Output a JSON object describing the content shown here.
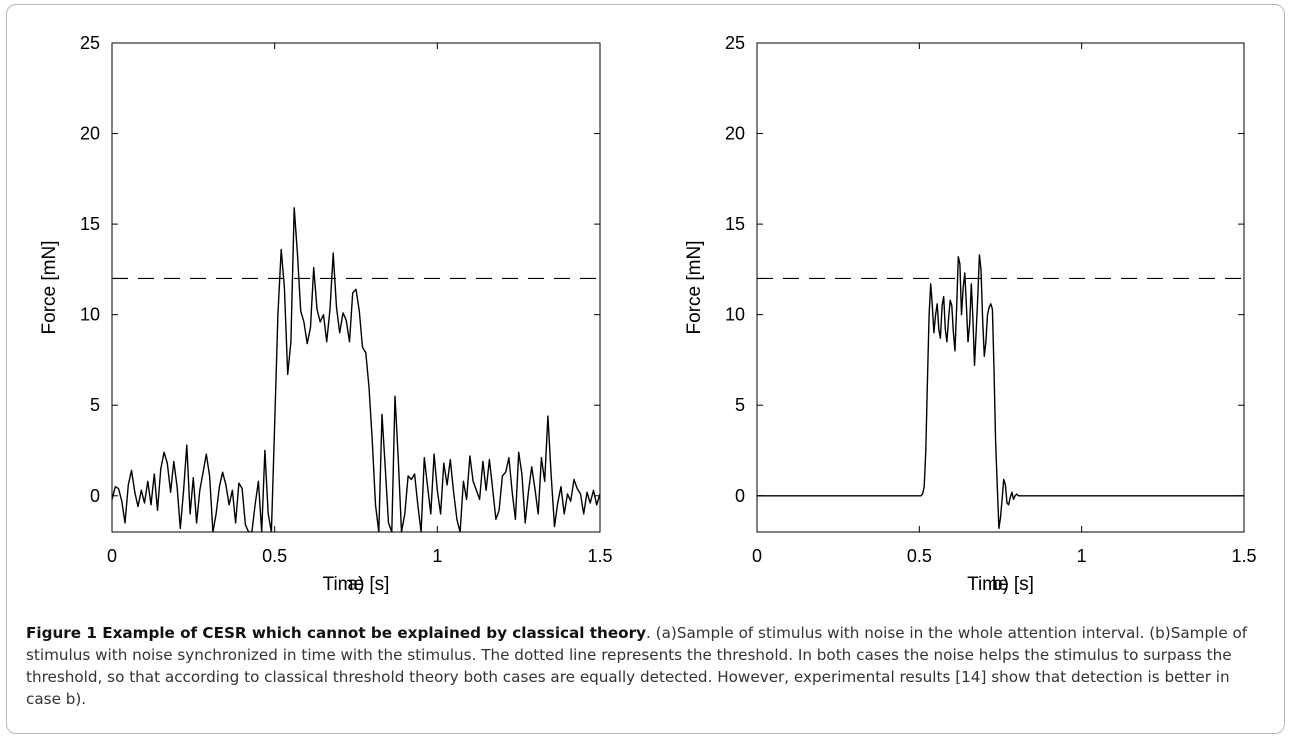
{
  "chart_data": [
    {
      "type": "line",
      "panel_label": "a)",
      "xlabel": "Time [s]",
      "ylabel": "Force [mN]",
      "xlim": [
        0,
        1.5
      ],
      "ylim": [
        -2,
        25
      ],
      "xticks": [
        "0",
        "0.5",
        "1",
        "1.5"
      ],
      "yticks": [
        "0",
        "5",
        "10",
        "15",
        "20",
        "25"
      ],
      "threshold": 12,
      "series": [
        {
          "style": "solid",
          "x": [
            0,
            0.01,
            0.02,
            0.03,
            0.04,
            0.05,
            0.06,
            0.07,
            0.08,
            0.09,
            0.1,
            0.11,
            0.12,
            0.13,
            0.14,
            0.15,
            0.16,
            0.17,
            0.18,
            0.19,
            0.2,
            0.21,
            0.22,
            0.23,
            0.24,
            0.25,
            0.26,
            0.27,
            0.28,
            0.29,
            0.3,
            0.31,
            0.32,
            0.33,
            0.34,
            0.35,
            0.36,
            0.37,
            0.38,
            0.39,
            0.4,
            0.41,
            0.42,
            0.43,
            0.44,
            0.45,
            0.46,
            0.47,
            0.48,
            0.49,
            0.5,
            0.51,
            0.52,
            0.53,
            0.54,
            0.55,
            0.56,
            0.57,
            0.58,
            0.59,
            0.6,
            0.61,
            0.62,
            0.63,
            0.64,
            0.65,
            0.66,
            0.67,
            0.68,
            0.69,
            0.7,
            0.71,
            0.72,
            0.73,
            0.74,
            0.75,
            0.76,
            0.77,
            0.78,
            0.79,
            0.8,
            0.81,
            0.82,
            0.83,
            0.84,
            0.85,
            0.86,
            0.87,
            0.88,
            0.89,
            0.9,
            0.91,
            0.92,
            0.93,
            0.94,
            0.95,
            0.96,
            0.97,
            0.98,
            0.99,
            1.0,
            1.01,
            1.02,
            1.03,
            1.04,
            1.05,
            1.06,
            1.07,
            1.08,
            1.09,
            1.1,
            1.11,
            1.12,
            1.13,
            1.14,
            1.15,
            1.16,
            1.17,
            1.18,
            1.19,
            1.2,
            1.21,
            1.22,
            1.23,
            1.24,
            1.25,
            1.26,
            1.27,
            1.28,
            1.29,
            1.3,
            1.31,
            1.32,
            1.33,
            1.34,
            1.35,
            1.36,
            1.37,
            1.38,
            1.39,
            1.4,
            1.41,
            1.42,
            1.43,
            1.44,
            1.45,
            1.46,
            1.47,
            1.48,
            1.49,
            1.5
          ],
          "y": [
            -0.2,
            0.5,
            0.4,
            -0.3,
            -1.5,
            0.6,
            1.4,
            0.2,
            -0.6,
            0.3,
            -0.4,
            0.8,
            -0.5,
            1.2,
            -0.8,
            1.5,
            2.4,
            1.8,
            0.2,
            1.9,
            0.5,
            -1.8,
            0.3,
            2.8,
            -1.0,
            1.0,
            -1.5,
            0.3,
            1.3,
            2.3,
            1.1,
            -2,
            -1.0,
            0.5,
            1.3,
            0.6,
            -0.5,
            0.3,
            -1.5,
            0.7,
            0.4,
            -1.6,
            -2,
            -2,
            -0.5,
            0.8,
            -2,
            2.5,
            -1.0,
            -2,
            4.0,
            10.0,
            13.6,
            11.5,
            6.7,
            8.5,
            15.9,
            13.4,
            10.2,
            9.6,
            8.4,
            9.3,
            12.6,
            10.3,
            9.6,
            10.0,
            8.5,
            10.3,
            13.4,
            10.4,
            9.0,
            10.1,
            9.7,
            8.5,
            11.2,
            11.4,
            10.2,
            8.2,
            7.9,
            6.0,
            3.0,
            -0.5,
            -2,
            4.5,
            1.5,
            -1.5,
            -2,
            5.5,
            2.0,
            -2,
            -1.0,
            1.1,
            0.9,
            1.2,
            -0.5,
            -2,
            2.1,
            0.5,
            -1.0,
            2.3,
            0.3,
            -1.0,
            1.8,
            0.6,
            2.0,
            0.2,
            -1.3,
            -2,
            0.8,
            -0.2,
            2.2,
            0.8,
            0.3,
            -0.2,
            1.9,
            0.3,
            2.0,
            0.4,
            -1.3,
            -0.8,
            1.1,
            1.3,
            2.1,
            0.2,
            -1.3,
            2.4,
            1.2,
            -1.5,
            0.2,
            1.6,
            0.4,
            -1.0,
            2.1,
            0.8,
            4.4,
            1.1,
            -1.7,
            -0.4,
            0.5,
            -1.0,
            0.1,
            -0.3,
            0.9,
            0.4,
            0.1,
            -1.0,
            0.2,
            -0.4,
            0.3,
            -0.5,
            0.1
          ]
        }
      ]
    },
    {
      "type": "line",
      "panel_label": "b)",
      "xlabel": "Time [s]",
      "ylabel": "Force [mN]",
      "xlim": [
        0,
        1.5
      ],
      "ylim": [
        -2,
        25
      ],
      "xticks": [
        "0",
        "0.5",
        "1",
        "1.5"
      ],
      "yticks": [
        "0",
        "5",
        "10",
        "15",
        "20",
        "25"
      ],
      "threshold": 12,
      "series": [
        {
          "style": "solid",
          "x": [
            0,
            0.5,
            0.505,
            0.51,
            0.515,
            0.52,
            0.525,
            0.53,
            0.535,
            0.54,
            0.545,
            0.55,
            0.555,
            0.56,
            0.565,
            0.57,
            0.575,
            0.58,
            0.585,
            0.59,
            0.595,
            0.6,
            0.605,
            0.61,
            0.615,
            0.62,
            0.625,
            0.63,
            0.635,
            0.64,
            0.645,
            0.65,
            0.655,
            0.66,
            0.665,
            0.67,
            0.675,
            0.68,
            0.685,
            0.69,
            0.695,
            0.7,
            0.705,
            0.71,
            0.715,
            0.72,
            0.725,
            0.73,
            0.735,
            0.74,
            0.745,
            0.75,
            0.755,
            0.76,
            0.765,
            0.77,
            0.775,
            0.78,
            0.785,
            0.79,
            0.795,
            0.8,
            0.805,
            0.81,
            0.815,
            0.82,
            0.825,
            0.83,
            0.835,
            0.84,
            0.845,
            0.85,
            0.855,
            0.86,
            0.865,
            0.87,
            0.875,
            0.88,
            0.885,
            0.89,
            0.895,
            0.9,
            0.91,
            0.92,
            0.93,
            0.94,
            0.95,
            1.0,
            1.5
          ],
          "y": [
            0,
            0,
            0,
            0.1,
            0.5,
            2.5,
            6.5,
            10.0,
            11.7,
            10.5,
            9.0,
            10.0,
            10.6,
            9.2,
            8.7,
            10.5,
            11.0,
            9.2,
            8.5,
            9.8,
            10.8,
            10.5,
            9.0,
            8.0,
            10.5,
            13.2,
            12.8,
            10.0,
            11.5,
            12.3,
            10.5,
            8.5,
            9.5,
            11.7,
            9.8,
            7.2,
            9.0,
            11.0,
            13.3,
            12.5,
            9.8,
            7.7,
            8.5,
            10.0,
            10.4,
            10.6,
            10.3,
            7.0,
            3.0,
            0.5,
            -1.8,
            -1.2,
            -0.2,
            0.9,
            0.6,
            -0.4,
            -0.5,
            -0.1,
            0.2,
            -0.2,
            0.0,
            0.1,
            0,
            0,
            0,
            0,
            0,
            0,
            0,
            0,
            0,
            0,
            0,
            0,
            0,
            0,
            0,
            0,
            0,
            0,
            0,
            0,
            0,
            0,
            0,
            0,
            0,
            0,
            0
          ]
        }
      ]
    }
  ],
  "caption": {
    "title": "Figure 1 Example of CESR which cannot be explained by classical theory",
    "body": ". (a)Sample of stimulus with noise in the whole attention interval. (b)Sample of stimulus with noise synchronized in time with the stimulus. The dotted line represents the threshold. In both cases the noise helps the stimulus to surpass the threshold, so that according to classical threshold theory both cases are equally detected. However, experimental results [14] show that detection is better in case b)."
  }
}
